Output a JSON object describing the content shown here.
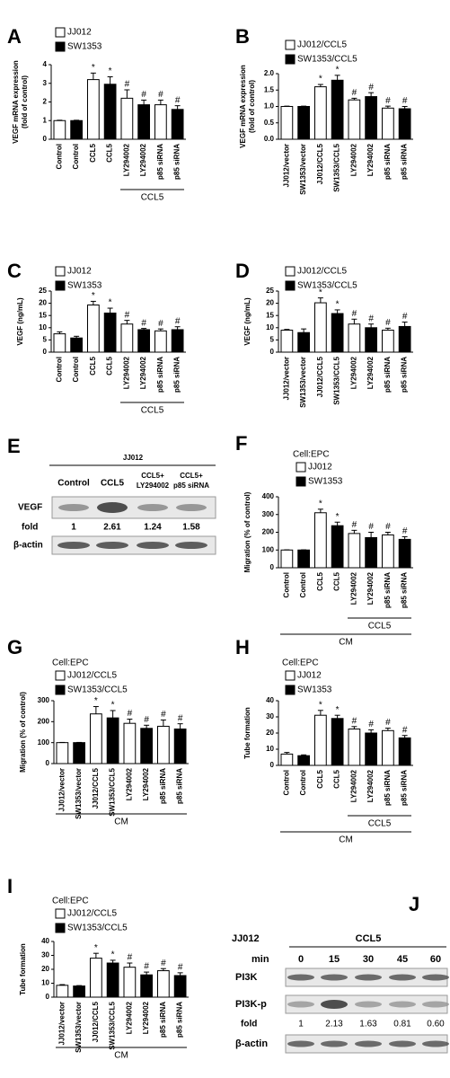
{
  "chart_data": [
    {
      "type": "bar",
      "panel": "A",
      "ylabel": [
        "VEGF mRNA expression",
        "(fold of control)"
      ],
      "categories": [
        "Control",
        "Control",
        "CCL5",
        "CCL5",
        "LY294002",
        "LY294002",
        "p85 siRNA",
        "p85 siRNA"
      ],
      "series": [
        {
          "name": "JJ012",
          "color": "#ffffff",
          "values": [
            1,
            null,
            3.2,
            null,
            2.2,
            null,
            1.85,
            null
          ],
          "errors": [
            0.02,
            null,
            0.35,
            null,
            0.45,
            null,
            0.25,
            null
          ],
          "annotations": [
            null,
            null,
            "*",
            null,
            "#",
            null,
            "#",
            null
          ]
        },
        {
          "name": "SW1353",
          "color": "#000000",
          "values": [
            null,
            1,
            null,
            2.95,
            null,
            1.85,
            null,
            1.6
          ],
          "errors": [
            null,
            0.02,
            null,
            0.4,
            null,
            0.25,
            null,
            0.2
          ],
          "annotations": [
            null,
            null,
            null,
            "*",
            null,
            "#",
            null,
            "#"
          ]
        }
      ],
      "ylim": [
        0,
        4
      ],
      "yticks": [
        0,
        1,
        2,
        3,
        4
      ],
      "group_label": "CCL5"
    },
    {
      "type": "bar",
      "panel": "B",
      "ylabel": [
        "VEGF mRNA expression",
        "(fold of control)"
      ],
      "categories": [
        "JJ012/vector",
        "SW1353/vector",
        "JJ012/CCL5",
        "SW1353/CCL5",
        "LY294002",
        "LY294002",
        "p85 siRNA",
        "p85 siRNA"
      ],
      "series": [
        {
          "name": "JJ012/CCL5",
          "color": "#ffffff",
          "values": [
            1,
            null,
            1.6,
            null,
            1.2,
            null,
            0.95,
            null
          ],
          "errors": [
            0.01,
            null,
            0.07,
            null,
            0.05,
            null,
            0.06,
            null
          ],
          "annotations": [
            null,
            null,
            "*",
            null,
            "#",
            null,
            "#",
            null
          ]
        },
        {
          "name": "SW1353/CCL5",
          "color": "#000000",
          "values": [
            null,
            1,
            null,
            1.8,
            null,
            1.3,
            null,
            0.93
          ],
          "errors": [
            null,
            0.01,
            null,
            0.15,
            null,
            0.12,
            null,
            0.07
          ],
          "annotations": [
            null,
            null,
            null,
            "*",
            null,
            "#",
            null,
            "#"
          ]
        }
      ],
      "ylim": [
        0,
        2
      ],
      "yticks": [
        {
          "value": 0,
          "label": "0.0"
        },
        {
          "value": 0.5,
          "label": "0.5"
        },
        {
          "value": 1,
          "label": "1.0"
        },
        {
          "value": 1.5,
          "label": "1.5"
        },
        {
          "value": 2,
          "label": "2.0"
        }
      ]
    },
    {
      "type": "bar",
      "panel": "C",
      "ylabel": [
        "VEGF (ng/mL)"
      ],
      "categories": [
        "Control",
        "Control",
        "CCL5",
        "CCL5",
        "LY294002",
        "LY294002",
        "p85 siRNA",
        "p85 siRNA"
      ],
      "series": [
        {
          "name": "JJ012",
          "color": "#ffffff",
          "values": [
            7.5,
            null,
            19.3,
            null,
            11.5,
            null,
            8.7,
            null
          ],
          "errors": [
            0.8,
            null,
            1.5,
            null,
            1.5,
            null,
            0.8,
            null
          ],
          "annotations": [
            null,
            null,
            "*",
            null,
            "#",
            null,
            "#",
            null
          ]
        },
        {
          "name": "SW1353",
          "color": "#000000",
          "values": [
            null,
            5.8,
            null,
            16,
            null,
            9.2,
            null,
            9.2
          ],
          "errors": [
            null,
            0.7,
            null,
            2,
            null,
            0.5,
            null,
            1.2
          ],
          "annotations": [
            null,
            null,
            null,
            "*",
            null,
            "#",
            null,
            "#"
          ]
        }
      ],
      "ylim": [
        0,
        25
      ],
      "yticks": [
        0,
        5,
        10,
        15,
        20,
        25
      ],
      "group_label": "CCL5"
    },
    {
      "type": "bar",
      "panel": "D",
      "ylabel": [
        "VEGF (ng/mL)"
      ],
      "categories": [
        "JJ012/vector",
        "SW1353/vector",
        "JJ012/CCL5",
        "SW1353/CCL5",
        "LY294002",
        "LY294002",
        "p85 siRNA",
        "p85 siRNA"
      ],
      "series": [
        {
          "name": "JJ012/CCL5",
          "color": "#ffffff",
          "values": [
            9,
            null,
            20.2,
            null,
            11.5,
            null,
            9,
            null
          ],
          "errors": [
            0.3,
            null,
            2,
            null,
            2,
            null,
            0.8,
            null
          ],
          "annotations": [
            null,
            null,
            "*",
            null,
            "#",
            null,
            "#",
            null
          ]
        },
        {
          "name": "SW1353/CCL5",
          "color": "#000000",
          "values": [
            null,
            8,
            null,
            15.8,
            null,
            10,
            null,
            10.5
          ],
          "errors": [
            null,
            1.5,
            null,
            1.5,
            null,
            1.5,
            null,
            1.8
          ],
          "annotations": [
            null,
            null,
            null,
            "*",
            null,
            "#",
            null,
            "#"
          ]
        }
      ],
      "ylim": [
        0,
        25
      ],
      "yticks": [
        0,
        5,
        10,
        15,
        20,
        25
      ]
    },
    {
      "type": "bar",
      "panel": "F",
      "subtitle": "Cell:EPC",
      "ylabel": [
        "Migration (%  of control)"
      ],
      "categories": [
        "Control",
        "Control",
        "CCL5",
        "CCL5",
        "LY294002",
        "LY294002",
        "p85 siRNA",
        "p85 siRNA"
      ],
      "series": [
        {
          "name": "JJ012",
          "color": "#ffffff",
          "values": [
            100,
            null,
            310,
            null,
            193,
            null,
            185,
            null
          ],
          "errors": [
            1,
            null,
            20,
            null,
            18,
            null,
            15,
            null
          ],
          "annotations": [
            null,
            null,
            "*",
            null,
            "#",
            null,
            "#",
            null
          ]
        },
        {
          "name": "SW1353",
          "color": "#000000",
          "values": [
            null,
            100,
            null,
            237,
            null,
            170,
            null,
            160
          ],
          "errors": [
            null,
            1,
            null,
            20,
            null,
            30,
            null,
            15
          ],
          "annotations": [
            null,
            null,
            null,
            "*",
            null,
            "#",
            null,
            "#"
          ]
        }
      ],
      "ylim": [
        0,
        400
      ],
      "yticks": [
        0,
        100,
        200,
        300,
        400
      ],
      "group_label": "CCL5",
      "footer_label": "CM"
    },
    {
      "type": "bar",
      "panel": "G",
      "subtitle": "Cell:EPC",
      "ylabel": [
        "Migration (%  of control)"
      ],
      "categories": [
        "JJ012/vector",
        "SW1353/vector",
        "JJ012/CCL5",
        "SW1353/CCL5",
        "LY294002",
        "LY294002",
        "p85 siRNA",
        "p85 siRNA"
      ],
      "series": [
        {
          "name": "JJ012/CCL5",
          "color": "#ffffff",
          "values": [
            100,
            null,
            237,
            null,
            192,
            null,
            178,
            null
          ],
          "errors": [
            1,
            null,
            35,
            null,
            20,
            null,
            30,
            null
          ],
          "annotations": [
            null,
            null,
            "*",
            null,
            "#",
            null,
            "#",
            null
          ]
        },
        {
          "name": "SW1353/CCL5",
          "color": "#000000",
          "values": [
            null,
            100,
            null,
            218,
            null,
            168,
            null,
            165
          ],
          "errors": [
            null,
            1,
            null,
            35,
            null,
            15,
            null,
            25
          ],
          "annotations": [
            null,
            null,
            null,
            "*",
            null,
            "#",
            null,
            "#"
          ]
        }
      ],
      "ylim": [
        0,
        300
      ],
      "yticks": [
        0,
        100,
        200,
        300
      ],
      "footer_label": "CM"
    },
    {
      "type": "bar",
      "panel": "H",
      "subtitle": "Cell:EPC",
      "ylabel": [
        "Tube formation"
      ],
      "categories": [
        "Control",
        "Control",
        "CCL5",
        "CCL5",
        "LY294002",
        "LY294002",
        "p85 siRNA",
        "p85 siRNA"
      ],
      "series": [
        {
          "name": "JJ012",
          "color": "#ffffff",
          "values": [
            7,
            null,
            31,
            null,
            22.5,
            null,
            21.5,
            null
          ],
          "errors": [
            1,
            null,
            3,
            null,
            1.5,
            null,
            1.5,
            null
          ],
          "annotations": [
            null,
            null,
            "*",
            null,
            "#",
            null,
            "#",
            null
          ]
        },
        {
          "name": "SW1353",
          "color": "#000000",
          "values": [
            null,
            6,
            null,
            29,
            null,
            20,
            null,
            17
          ],
          "errors": [
            null,
            0.5,
            null,
            2,
            null,
            2,
            null,
            1.5
          ],
          "annotations": [
            null,
            null,
            null,
            "*",
            null,
            "#",
            null,
            "#"
          ]
        }
      ],
      "ylim": [
        0,
        40
      ],
      "yticks": [
        0,
        10,
        20,
        30,
        40
      ],
      "group_label": "CCL5",
      "footer_label": "CM"
    },
    {
      "type": "bar",
      "panel": "I",
      "subtitle": "Cell:EPC",
      "ylabel": [
        "Tube formation"
      ],
      "categories": [
        "JJ012/vector",
        "SW1353/vector",
        "JJ012/CCL5",
        "SW1353/CCL5",
        "LY294002",
        "LY294002",
        "p85 siRNA",
        "p85 siRNA"
      ],
      "series": [
        {
          "name": "JJ012/CCL5",
          "color": "#ffffff",
          "values": [
            8.5,
            null,
            28,
            null,
            21.5,
            null,
            19,
            null
          ],
          "errors": [
            0.5,
            null,
            3.5,
            null,
            3,
            null,
            1.5,
            null
          ],
          "annotations": [
            null,
            null,
            "*",
            null,
            "#",
            null,
            "#",
            null
          ]
        },
        {
          "name": "SW1353/CCL5",
          "color": "#000000",
          "values": [
            null,
            8,
            null,
            24.5,
            null,
            16,
            null,
            15.5
          ],
          "errors": [
            null,
            0.3,
            null,
            2,
            null,
            2,
            null,
            2
          ],
          "annotations": [
            null,
            null,
            null,
            "*",
            null,
            "#",
            null,
            "#"
          ]
        }
      ],
      "ylim": [
        0,
        40
      ],
      "yticks": [
        0,
        10,
        20,
        30,
        40
      ],
      "footer_label": "CM"
    }
  ],
  "blots": [
    {
      "panel": "E",
      "title": "JJ012",
      "lanes": [
        [
          "Control"
        ],
        [
          "CCL5"
        ],
        [
          "CCL5+",
          "LY294002"
        ],
        [
          "CCL5+",
          "p85 siRNA"
        ]
      ],
      "rows": [
        "VEGF",
        "β-actin"
      ],
      "fold_label": "fold",
      "fold": [
        1,
        2.61,
        1.24,
        1.58
      ]
    },
    {
      "panel": "J",
      "title": "JJ012",
      "treatment": "CCL5",
      "time_label": "min",
      "lanes": [
        0,
        15,
        30,
        45,
        60
      ],
      "rows": [
        "PI3K",
        "PI3K-p",
        "β-actin"
      ],
      "fold_label": "fold",
      "fold": [
        1,
        2.13,
        1.63,
        0.81,
        {
          "value": 0.6,
          "label": "0.60"
        }
      ]
    }
  ]
}
